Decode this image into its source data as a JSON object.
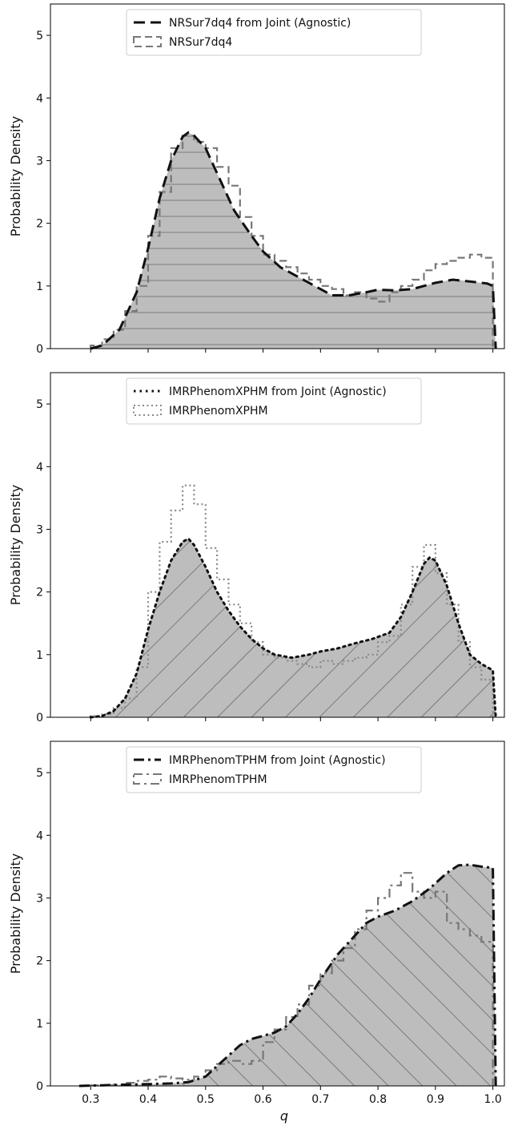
{
  "figure": {
    "xlabel": "q"
  },
  "chart_data": [
    {
      "type": "area",
      "ylabel": "Probability Density",
      "xlim": [
        0.23,
        1.02
      ],
      "ylim": [
        0,
        5.5
      ],
      "xticks": [
        0.3,
        0.4,
        0.5,
        0.6,
        0.7,
        0.8,
        0.9,
        1.0
      ],
      "xtick_labels": [],
      "yticks": [
        0,
        1,
        2,
        3,
        4,
        5
      ],
      "ytick_labels": [
        "0",
        "1",
        "2",
        "3",
        "4",
        "5"
      ],
      "legend_position": "top-center",
      "fill_color": "#bdbdbd",
      "hatch": "horizontal",
      "series": [
        {
          "name": "NRSur7dq4 from Joint (Agnostic)",
          "style": "dashed",
          "color": "#111111",
          "x": [
            0.3,
            0.32,
            0.35,
            0.38,
            0.4,
            0.42,
            0.44,
            0.46,
            0.47,
            0.48,
            0.5,
            0.52,
            0.55,
            0.58,
            0.6,
            0.63,
            0.66,
            0.7,
            0.72,
            0.75,
            0.78,
            0.8,
            0.83,
            0.86,
            0.9,
            0.93,
            0.96,
            0.99,
            1.0,
            1.005
          ],
          "y": [
            0.0,
            0.05,
            0.3,
            0.9,
            1.6,
            2.4,
            3.0,
            3.38,
            3.45,
            3.4,
            3.2,
            2.8,
            2.2,
            1.8,
            1.55,
            1.3,
            1.15,
            0.95,
            0.85,
            0.85,
            0.9,
            0.94,
            0.93,
            0.95,
            1.05,
            1.1,
            1.07,
            1.04,
            1.0,
            0.0
          ]
        },
        {
          "name": "NRSur7dq4",
          "style": "dashed-step",
          "color": "#777777",
          "bins": [
            0.3,
            0.32,
            0.34,
            0.36,
            0.38,
            0.4,
            0.42,
            0.44,
            0.46,
            0.48,
            0.5,
            0.52,
            0.54,
            0.56,
            0.58,
            0.6,
            0.62,
            0.64,
            0.66,
            0.68,
            0.7,
            0.72,
            0.74,
            0.76,
            0.78,
            0.8,
            0.82,
            0.84,
            0.86,
            0.88,
            0.9,
            0.92,
            0.94,
            0.96,
            0.98,
            1.0
          ],
          "y": [
            0.05,
            0.15,
            0.3,
            0.6,
            1.0,
            1.8,
            2.5,
            3.2,
            3.4,
            3.3,
            3.2,
            2.9,
            2.6,
            2.1,
            1.8,
            1.5,
            1.4,
            1.3,
            1.2,
            1.1,
            1.0,
            0.95,
            0.85,
            0.9,
            0.8,
            0.75,
            0.9,
            1.0,
            1.1,
            1.25,
            1.35,
            1.4,
            1.45,
            1.5,
            1.45
          ]
        }
      ]
    },
    {
      "type": "area",
      "ylabel": "Probability Density",
      "xlim": [
        0.23,
        1.02
      ],
      "ylim": [
        0,
        5.5
      ],
      "xticks": [
        0.3,
        0.4,
        0.5,
        0.6,
        0.7,
        0.8,
        0.9,
        1.0
      ],
      "xtick_labels": [],
      "yticks": [
        0,
        1,
        2,
        3,
        4,
        5
      ],
      "ytick_labels": [
        "0",
        "1",
        "2",
        "3",
        "4",
        "5"
      ],
      "legend_position": "top-center",
      "fill_color": "#bdbdbd",
      "hatch": "diagonal-up",
      "series": [
        {
          "name": "IMRPhenomXPHM from Joint (Agnostic)",
          "style": "dotted",
          "color": "#111111",
          "x": [
            0.3,
            0.32,
            0.34,
            0.36,
            0.38,
            0.4,
            0.42,
            0.44,
            0.46,
            0.47,
            0.48,
            0.5,
            0.52,
            0.54,
            0.56,
            0.58,
            0.6,
            0.62,
            0.65,
            0.68,
            0.7,
            0.73,
            0.76,
            0.79,
            0.82,
            0.84,
            0.86,
            0.88,
            0.89,
            0.9,
            0.92,
            0.94,
            0.96,
            0.98,
            1.0,
            1.005
          ],
          "y": [
            0.0,
            0.02,
            0.1,
            0.3,
            0.7,
            1.4,
            2.0,
            2.5,
            2.8,
            2.85,
            2.75,
            2.4,
            2.0,
            1.7,
            1.45,
            1.25,
            1.1,
            1.0,
            0.95,
            1.0,
            1.05,
            1.1,
            1.18,
            1.25,
            1.35,
            1.6,
            2.0,
            2.45,
            2.55,
            2.5,
            2.1,
            1.5,
            1.0,
            0.85,
            0.75,
            0.0
          ]
        },
        {
          "name": "IMRPhenomXPHM",
          "style": "dotted-step",
          "color": "#888888",
          "bins": [
            0.3,
            0.32,
            0.34,
            0.36,
            0.38,
            0.4,
            0.42,
            0.44,
            0.46,
            0.48,
            0.5,
            0.52,
            0.54,
            0.56,
            0.58,
            0.6,
            0.62,
            0.64,
            0.66,
            0.68,
            0.7,
            0.72,
            0.74,
            0.76,
            0.78,
            0.8,
            0.82,
            0.84,
            0.86,
            0.88,
            0.9,
            0.92,
            0.94,
            0.96,
            0.98,
            1.0
          ],
          "y": [
            0.02,
            0.05,
            0.15,
            0.3,
            0.8,
            2.0,
            2.8,
            3.3,
            3.7,
            3.4,
            2.7,
            2.2,
            1.8,
            1.5,
            1.2,
            1.0,
            0.95,
            0.9,
            0.85,
            0.8,
            0.9,
            0.85,
            0.9,
            0.95,
            1.0,
            1.2,
            1.3,
            1.8,
            2.4,
            2.75,
            2.3,
            1.8,
            1.2,
            0.8,
            0.6
          ]
        }
      ]
    },
    {
      "type": "area",
      "ylabel": "Probability Density",
      "xlim": [
        0.23,
        1.02
      ],
      "ylim": [
        0,
        5.5
      ],
      "xticks": [
        0.3,
        0.4,
        0.5,
        0.6,
        0.7,
        0.8,
        0.9,
        1.0
      ],
      "xtick_labels": [
        "0.3",
        "0.4",
        "0.5",
        "0.6",
        "0.7",
        "0.8",
        "0.9",
        "1.0"
      ],
      "yticks": [
        0,
        1,
        2,
        3,
        4,
        5
      ],
      "ytick_labels": [
        "0",
        "1",
        "2",
        "3",
        "4",
        "5"
      ],
      "legend_position": "top-center",
      "fill_color": "#bdbdbd",
      "hatch": "diagonal-down",
      "series": [
        {
          "name": "IMRPhenomTPHM from Joint (Agnostic)",
          "style": "dashdot",
          "color": "#111111",
          "x": [
            0.28,
            0.32,
            0.36,
            0.4,
            0.44,
            0.47,
            0.5,
            0.53,
            0.56,
            0.58,
            0.6,
            0.62,
            0.64,
            0.66,
            0.68,
            0.7,
            0.73,
            0.76,
            0.78,
            0.8,
            0.83,
            0.86,
            0.89,
            0.92,
            0.94,
            0.96,
            0.98,
            1.0,
            1.005
          ],
          "y": [
            0.0,
            0.01,
            0.02,
            0.03,
            0.04,
            0.06,
            0.15,
            0.4,
            0.65,
            0.75,
            0.8,
            0.85,
            0.95,
            1.15,
            1.4,
            1.7,
            2.1,
            2.4,
            2.6,
            2.7,
            2.8,
            2.95,
            3.15,
            3.4,
            3.52,
            3.53,
            3.5,
            3.48,
            0.0
          ]
        },
        {
          "name": "IMRPhenomTPHM",
          "style": "dashdot-step",
          "color": "#777777",
          "bins": [
            0.3,
            0.32,
            0.34,
            0.36,
            0.38,
            0.4,
            0.42,
            0.44,
            0.46,
            0.48,
            0.5,
            0.52,
            0.54,
            0.56,
            0.58,
            0.6,
            0.62,
            0.64,
            0.66,
            0.68,
            0.7,
            0.72,
            0.74,
            0.76,
            0.78,
            0.8,
            0.82,
            0.84,
            0.86,
            0.88,
            0.9,
            0.92,
            0.94,
            0.96,
            0.98,
            1.0
          ],
          "y": [
            0.01,
            0.01,
            0.02,
            0.05,
            0.08,
            0.1,
            0.15,
            0.12,
            0.1,
            0.15,
            0.25,
            0.35,
            0.4,
            0.35,
            0.4,
            0.7,
            0.9,
            1.1,
            1.3,
            1.6,
            1.8,
            2.0,
            2.2,
            2.5,
            2.8,
            3.0,
            3.2,
            3.4,
            3.1,
            3.0,
            3.1,
            2.6,
            2.5,
            2.4,
            2.3
          ]
        }
      ]
    }
  ]
}
